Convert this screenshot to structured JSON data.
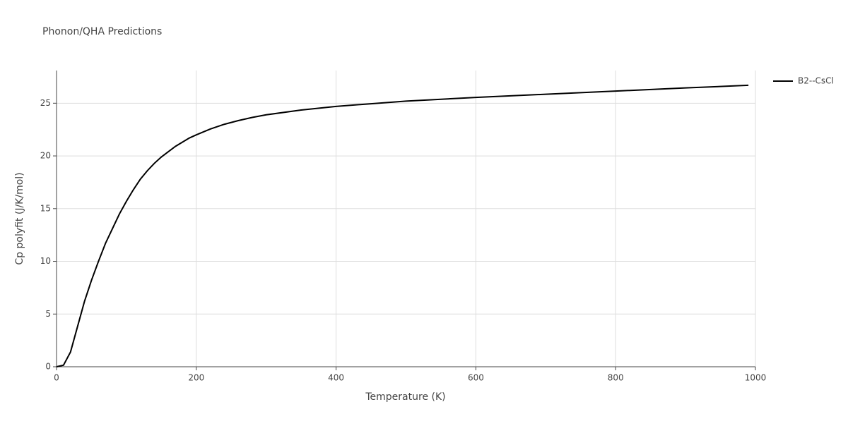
{
  "chart_data": {
    "type": "line",
    "title": "Phonon/QHA Predictions",
    "x_label": "Temperature (K)",
    "y_label": "Cp polyfit (J/K/mol)",
    "x": [
      0,
      10,
      20,
      30,
      40,
      50,
      60,
      70,
      80,
      90,
      100,
      110,
      120,
      130,
      140,
      150,
      160,
      170,
      180,
      190,
      200,
      220,
      240,
      260,
      280,
      300,
      350,
      400,
      450,
      500,
      600,
      700,
      800,
      900,
      990
    ],
    "series": [
      {
        "name": "B2--CsCl",
        "color": "#000000",
        "values": [
          0,
          0.15,
          1.4,
          3.8,
          6.2,
          8.2,
          10.0,
          11.7,
          13.1,
          14.5,
          15.7,
          16.8,
          17.8,
          18.6,
          19.3,
          19.9,
          20.4,
          20.9,
          21.3,
          21.7,
          22.0,
          22.55,
          23.0,
          23.35,
          23.65,
          23.9,
          24.35,
          24.7,
          24.95,
          25.2,
          25.55,
          25.85,
          26.15,
          26.45,
          26.7
        ]
      }
    ],
    "xlim": [
      0,
      1000
    ],
    "xticks": [
      0,
      200,
      400,
      600,
      800,
      1000
    ],
    "ylim": [
      0,
      28.1
    ],
    "yticks": [
      0,
      5,
      10,
      15,
      20,
      25
    ],
    "grid": true
  }
}
